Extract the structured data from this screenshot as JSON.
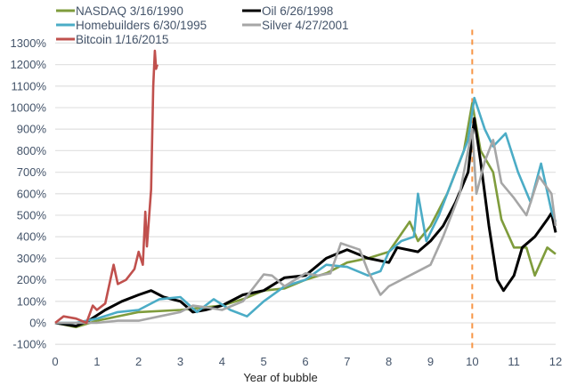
{
  "chart_data": {
    "type": "line",
    "title": "",
    "xlabel": "Year of bubble",
    "ylabel": "",
    "xlim": [
      0,
      12
    ],
    "ylim": [
      -100,
      1300
    ],
    "x_ticks": [
      "0",
      "1",
      "2",
      "3",
      "4",
      "5",
      "6",
      "7",
      "8",
      "9",
      "10",
      "11",
      "12"
    ],
    "y_ticks": [
      "1300%",
      "1200%",
      "1100%",
      "1000%",
      "900%",
      "800%",
      "700%",
      "600%",
      "500%",
      "400%",
      "300%",
      "200%",
      "100%",
      "0%",
      "-100%"
    ],
    "y_tick_values": [
      1300,
      1200,
      1100,
      1000,
      900,
      800,
      700,
      600,
      500,
      400,
      300,
      200,
      100,
      0,
      -100
    ],
    "grid": true,
    "legend_position": "top",
    "annotations": [
      {
        "type": "vertical-dashed-line",
        "x": 10,
        "color": "#f79646"
      }
    ],
    "series": [
      {
        "name": "NASDAQ 3/16/1990",
        "color": "#7f9c3c",
        "x": [
          0,
          0.5,
          1,
          2,
          3,
          4,
          4.5,
          5,
          5.5,
          6,
          6.5,
          7,
          7.5,
          8,
          8.5,
          8.7,
          9,
          9.4,
          9.8,
          10,
          10.2,
          10.5,
          10.7,
          11,
          11.3,
          11.5,
          11.8,
          12
        ],
        "y": [
          0,
          -20,
          10,
          50,
          60,
          80,
          110,
          150,
          160,
          200,
          230,
          280,
          300,
          330,
          470,
          380,
          450,
          600,
          800,
          1020,
          800,
          700,
          480,
          350,
          350,
          220,
          350,
          320
        ]
      },
      {
        "name": "Oil 6/26/1998",
        "color": "#000000",
        "x": [
          0,
          0.5,
          0.8,
          1.2,
          1.6,
          2,
          2.3,
          2.6,
          3,
          3.3,
          3.6,
          4,
          4.5,
          5,
          5.5,
          6,
          6.5,
          7,
          7.5,
          8,
          8.2,
          8.7,
          9,
          9.3,
          9.6,
          9.9,
          10.05,
          10.2,
          10.4,
          10.6,
          10.75,
          11,
          11.2,
          11.5,
          11.8,
          11.9,
          12
        ],
        "y": [
          0,
          -15,
          10,
          60,
          100,
          130,
          150,
          120,
          100,
          50,
          60,
          80,
          130,
          150,
          210,
          220,
          300,
          340,
          300,
          280,
          350,
          330,
          380,
          450,
          560,
          700,
          950,
          750,
          450,
          200,
          150,
          220,
          350,
          400,
          480,
          510,
          420
        ]
      },
      {
        "name": "Homebuilders 6/30/1995",
        "color": "#4bacc6",
        "x": [
          0,
          0.5,
          1,
          1.5,
          2,
          2.5,
          3,
          3.4,
          3.8,
          4.2,
          4.6,
          5,
          5.5,
          6,
          6.5,
          7,
          7.5,
          7.8,
          8,
          8.3,
          8.6,
          8.7,
          8.9,
          9.2,
          9.6,
          9.9,
          10.05,
          10.3,
          10.5,
          10.8,
          11.1,
          11.4,
          11.65,
          11.9,
          12
        ],
        "y": [
          0,
          0,
          20,
          50,
          60,
          110,
          120,
          50,
          110,
          60,
          30,
          100,
          170,
          200,
          270,
          260,
          220,
          240,
          330,
          380,
          400,
          600,
          380,
          500,
          700,
          850,
          1045,
          900,
          820,
          880,
          700,
          560,
          740,
          520,
          470
        ]
      },
      {
        "name": "Silver 4/27/2001",
        "color": "#a6a6a6",
        "x": [
          0,
          1,
          1.5,
          2,
          2.5,
          3,
          3.3,
          3.7,
          4,
          4.5,
          5,
          5.2,
          5.5,
          6,
          6.3,
          6.6,
          6.85,
          7.3,
          7.5,
          7.8,
          8,
          8.5,
          9,
          9.3,
          9.7,
          10,
          10.1,
          10.3,
          10.5,
          10.7,
          11,
          11.3,
          11.6,
          11.9,
          12
        ],
        "y": [
          0,
          0,
          10,
          10,
          30,
          50,
          80,
          70,
          60,
          100,
          225,
          220,
          170,
          230,
          220,
          230,
          370,
          340,
          240,
          130,
          170,
          220,
          270,
          400,
          600,
          900,
          600,
          750,
          850,
          650,
          580,
          500,
          680,
          600,
          450
        ]
      },
      {
        "name": "Bitcoin 1/16/2015",
        "color": "#c0504d",
        "x": [
          0,
          0.2,
          0.5,
          0.75,
          0.9,
          1.0,
          1.2,
          1.4,
          1.5,
          1.7,
          1.9,
          2.0,
          2.1,
          2.16,
          2.2,
          2.3,
          2.35,
          2.39,
          2.42,
          2.45
        ],
        "y": [
          0,
          30,
          20,
          0,
          80,
          60,
          90,
          270,
          180,
          200,
          250,
          330,
          270,
          516,
          355,
          620,
          1100,
          1264,
          1180,
          1200
        ]
      }
    ]
  }
}
